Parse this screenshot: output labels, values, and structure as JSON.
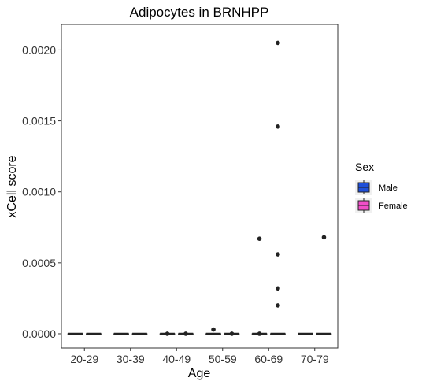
{
  "chart_data": {
    "type": "box",
    "title": "Adipocytes in BRNHPP",
    "xlabel": "Age",
    "ylabel": "xCell score",
    "categories": [
      "20-29",
      "30-39",
      "40-49",
      "50-59",
      "60-69",
      "70-79"
    ],
    "ylim": [
      -0.0001,
      0.00218
    ],
    "yticks": [
      0.0,
      0.0005,
      0.001,
      0.0015,
      0.002
    ],
    "ytick_labels": [
      "0.0000",
      "0.0005",
      "0.0010",
      "0.0015",
      "0.0020"
    ],
    "grid": false,
    "legend": {
      "title": "Sex",
      "placement": "right"
    },
    "series": [
      {
        "name": "Male",
        "color": "#1f4fd8",
        "boxes": [
          {
            "q1": 0,
            "median": 0,
            "q3": 0,
            "whisker_low": 0,
            "whisker_high": 0,
            "outliers": []
          },
          {
            "q1": 0,
            "median": 0,
            "q3": 0,
            "whisker_low": 0,
            "whisker_high": 0,
            "outliers": []
          },
          {
            "q1": 0,
            "median": 0,
            "q3": 0,
            "whisker_low": 0,
            "whisker_high": 0,
            "outliers": [
              0.0
            ]
          },
          {
            "q1": 0,
            "median": 0,
            "q3": 0,
            "whisker_low": 0,
            "whisker_high": 0,
            "outliers": [
              3e-05
            ]
          },
          {
            "q1": 0,
            "median": 0,
            "q3": 0,
            "whisker_low": 0,
            "whisker_high": 0,
            "outliers": [
              0.00067,
              0.0
            ]
          },
          {
            "q1": 0,
            "median": 0,
            "q3": 0,
            "whisker_low": 0,
            "whisker_high": 0,
            "outliers": []
          }
        ]
      },
      {
        "name": "Female",
        "color": "#f04fc8",
        "boxes": [
          {
            "q1": 0,
            "median": 0,
            "q3": 0,
            "whisker_low": 0,
            "whisker_high": 0,
            "outliers": []
          },
          {
            "q1": 0,
            "median": 0,
            "q3": 0,
            "whisker_low": 0,
            "whisker_high": 0,
            "outliers": []
          },
          {
            "q1": 0,
            "median": 0,
            "q3": 0,
            "whisker_low": 0,
            "whisker_high": 0,
            "outliers": [
              0.0
            ]
          },
          {
            "q1": 0,
            "median": 0,
            "q3": 0,
            "whisker_low": 0,
            "whisker_high": 0,
            "outliers": [
              0.0
            ]
          },
          {
            "q1": 0,
            "median": 0,
            "q3": 0,
            "whisker_low": 0,
            "whisker_high": 0,
            "outliers": [
              0.00205,
              0.00146,
              0.00056,
              0.00032,
              0.0002
            ]
          },
          {
            "q1": 0,
            "median": 0,
            "q3": 0,
            "whisker_low": 0,
            "whisker_high": 0,
            "outliers": [
              0.00068
            ]
          }
        ]
      }
    ]
  }
}
